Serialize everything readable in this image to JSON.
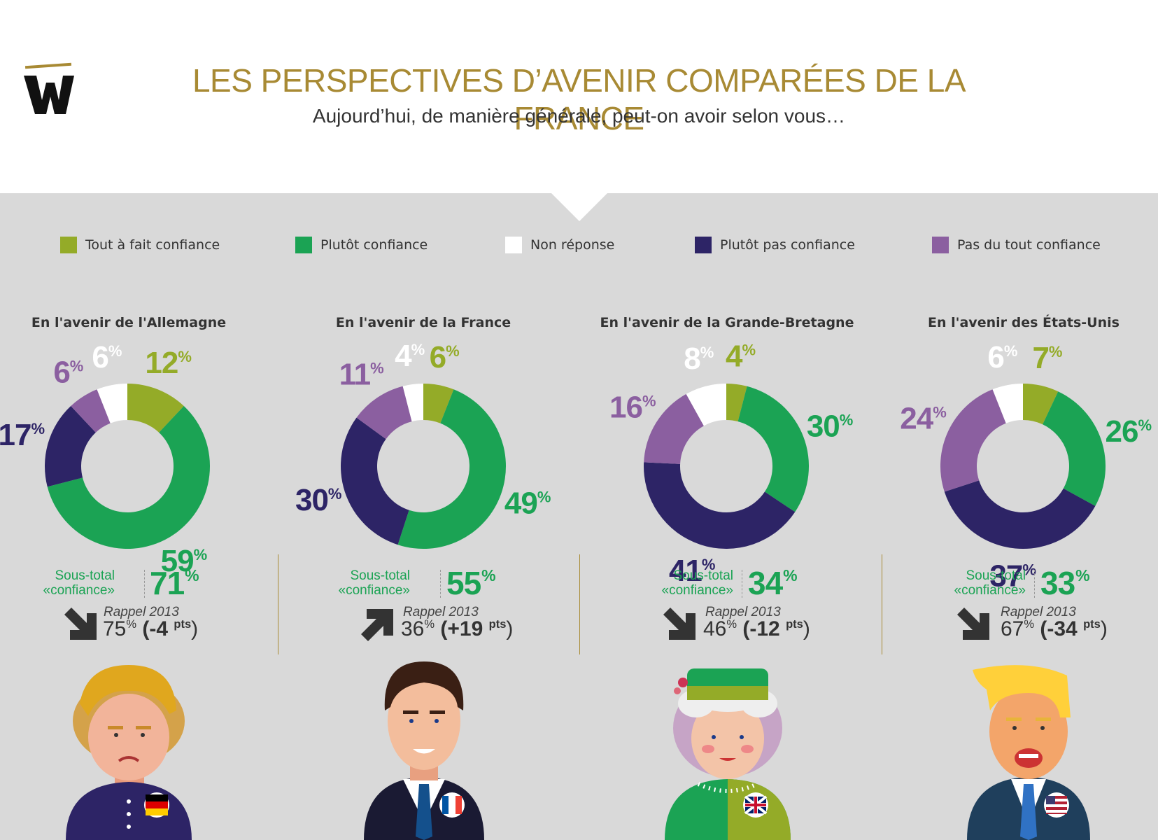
{
  "header": {
    "title": "LES PERSPECTIVES D’AVENIR COMPARÉES DE LA FRANCE",
    "subtitle": "Aujourd’hui, de manière générale, peut-on avoir selon vous…"
  },
  "colors": {
    "tout_a_fait": "#94ab28",
    "plutot": "#1ba354",
    "non_reponse": "#ffffff",
    "plutot_pas": "#2d2466",
    "pas_du_tout": "#8b5fa0",
    "gold": "#a88a34",
    "panel": "#d9d9d9"
  },
  "legend": [
    {
      "label": "Tout à fait confiance",
      "color": "#94ab28"
    },
    {
      "label": "Plutôt confiance",
      "color": "#1ba354"
    },
    {
      "label": "Non réponse",
      "color": "#ffffff"
    },
    {
      "label": "Plutôt pas confiance",
      "color": "#2d2466"
    },
    {
      "label": "Pas du tout confiance",
      "color": "#8b5fa0"
    }
  ],
  "chart_data": [
    {
      "type": "pie",
      "title": "En l'avenir de l'Allemagne",
      "categories": [
        "Tout à fait confiance",
        "Plutôt confiance",
        "Plutôt pas confiance",
        "Pas du tout confiance",
        "Non réponse"
      ],
      "values": [
        12,
        59,
        17,
        6,
        6
      ],
      "labels": [
        "12",
        "59",
        "17",
        "6",
        "6"
      ],
      "subtotal_label": "Sous-total «confiance»",
      "subtotal": "71",
      "rappel_label": "Rappel 2013",
      "rappel_value": "75",
      "rappel_diff": "(-4",
      "trend": "down",
      "flag": "germany-flag-icon",
      "portrait": "merkel-portrait"
    },
    {
      "type": "pie",
      "title": "En l'avenir de la France",
      "categories": [
        "Tout à fait confiance",
        "Plutôt confiance",
        "Plutôt pas confiance",
        "Pas du tout confiance",
        "Non réponse"
      ],
      "values": [
        6,
        49,
        30,
        11,
        4
      ],
      "labels": [
        "6",
        "49",
        "30",
        "11",
        "4"
      ],
      "subtotal_label": "Sous-total «confiance»",
      "subtotal": "55",
      "rappel_label": "Rappel 2013",
      "rappel_value": "36",
      "rappel_diff": "(+19",
      "trend": "up",
      "flag": "france-flag-icon",
      "portrait": "macron-portrait"
    },
    {
      "type": "pie",
      "title": "En l'avenir de la Grande-Bretagne",
      "categories": [
        "Tout à fait confiance",
        "Plutôt confiance",
        "Plutôt pas confiance",
        "Pas du tout confiance",
        "Non réponse"
      ],
      "values": [
        4,
        30,
        41,
        16,
        8
      ],
      "labels": [
        "4",
        "30",
        "41",
        "16",
        "8"
      ],
      "subtotal_label": "Sous-total «confiance»",
      "subtotal": "34",
      "rappel_label": "Rappel 2013",
      "rappel_value": "46",
      "rappel_diff": "(-12",
      "trend": "down",
      "flag": "uk-flag-icon",
      "portrait": "queen-portrait"
    },
    {
      "type": "pie",
      "title": "En l'avenir des États-Unis",
      "categories": [
        "Tout à fait confiance",
        "Plutôt confiance",
        "Plutôt pas confiance",
        "Pas du tout confiance",
        "Non réponse"
      ],
      "values": [
        7,
        26,
        37,
        24,
        6
      ],
      "labels": [
        "7",
        "26",
        "37",
        "24",
        "6"
      ],
      "subtotal_label": "Sous-total «confiance»",
      "subtotal": "33",
      "rappel_label": "Rappel 2013",
      "rappel_value": "67",
      "rappel_diff": "(-34",
      "trend": "down",
      "flag": "usa-flag-icon",
      "portrait": "trump-portrait"
    }
  ],
  "units": {
    "pct": "%",
    "pts": "pts",
    "close": ")"
  }
}
